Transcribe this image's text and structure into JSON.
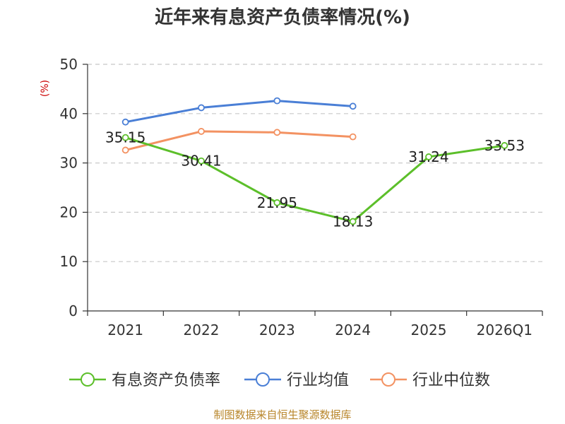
{
  "colors": {
    "series_green": "#5cbf2a",
    "series_blue": "#4a7fd6",
    "series_orange": "#f39262",
    "axis": "#333333",
    "grid": "#c8c8c8",
    "source_text": "#b8862b",
    "unit_text": "#cc0000"
  },
  "source": "制图数据来自恒生聚源数据库",
  "chart_data": {
    "type": "line",
    "title": "近年来有息资产负债率情况(%)",
    "y_unit_label": "(%)",
    "xlabel": "",
    "ylabel": "",
    "categories": [
      "2021",
      "2022",
      "2023",
      "2024",
      "2025",
      "2026Q1"
    ],
    "ylim": [
      0,
      50
    ],
    "yticks": [
      0,
      10,
      20,
      30,
      40,
      50
    ],
    "grid": true,
    "legend_position": "bottom",
    "series": [
      {
        "name": "有息资产负债率",
        "color": "#5cbf2a",
        "values": [
          35.15,
          30.41,
          21.95,
          18.13,
          31.24,
          33.53
        ],
        "labels": [
          "35.15",
          "30.41",
          "21.95",
          "18.13",
          "31.24",
          "33.53"
        ]
      },
      {
        "name": "行业均值",
        "color": "#4a7fd6",
        "values": [
          38.3,
          41.2,
          42.6,
          41.5,
          null,
          null
        ]
      },
      {
        "name": "行业中位数",
        "color": "#f39262",
        "values": [
          32.6,
          36.4,
          36.2,
          35.3,
          null,
          null
        ]
      }
    ]
  }
}
